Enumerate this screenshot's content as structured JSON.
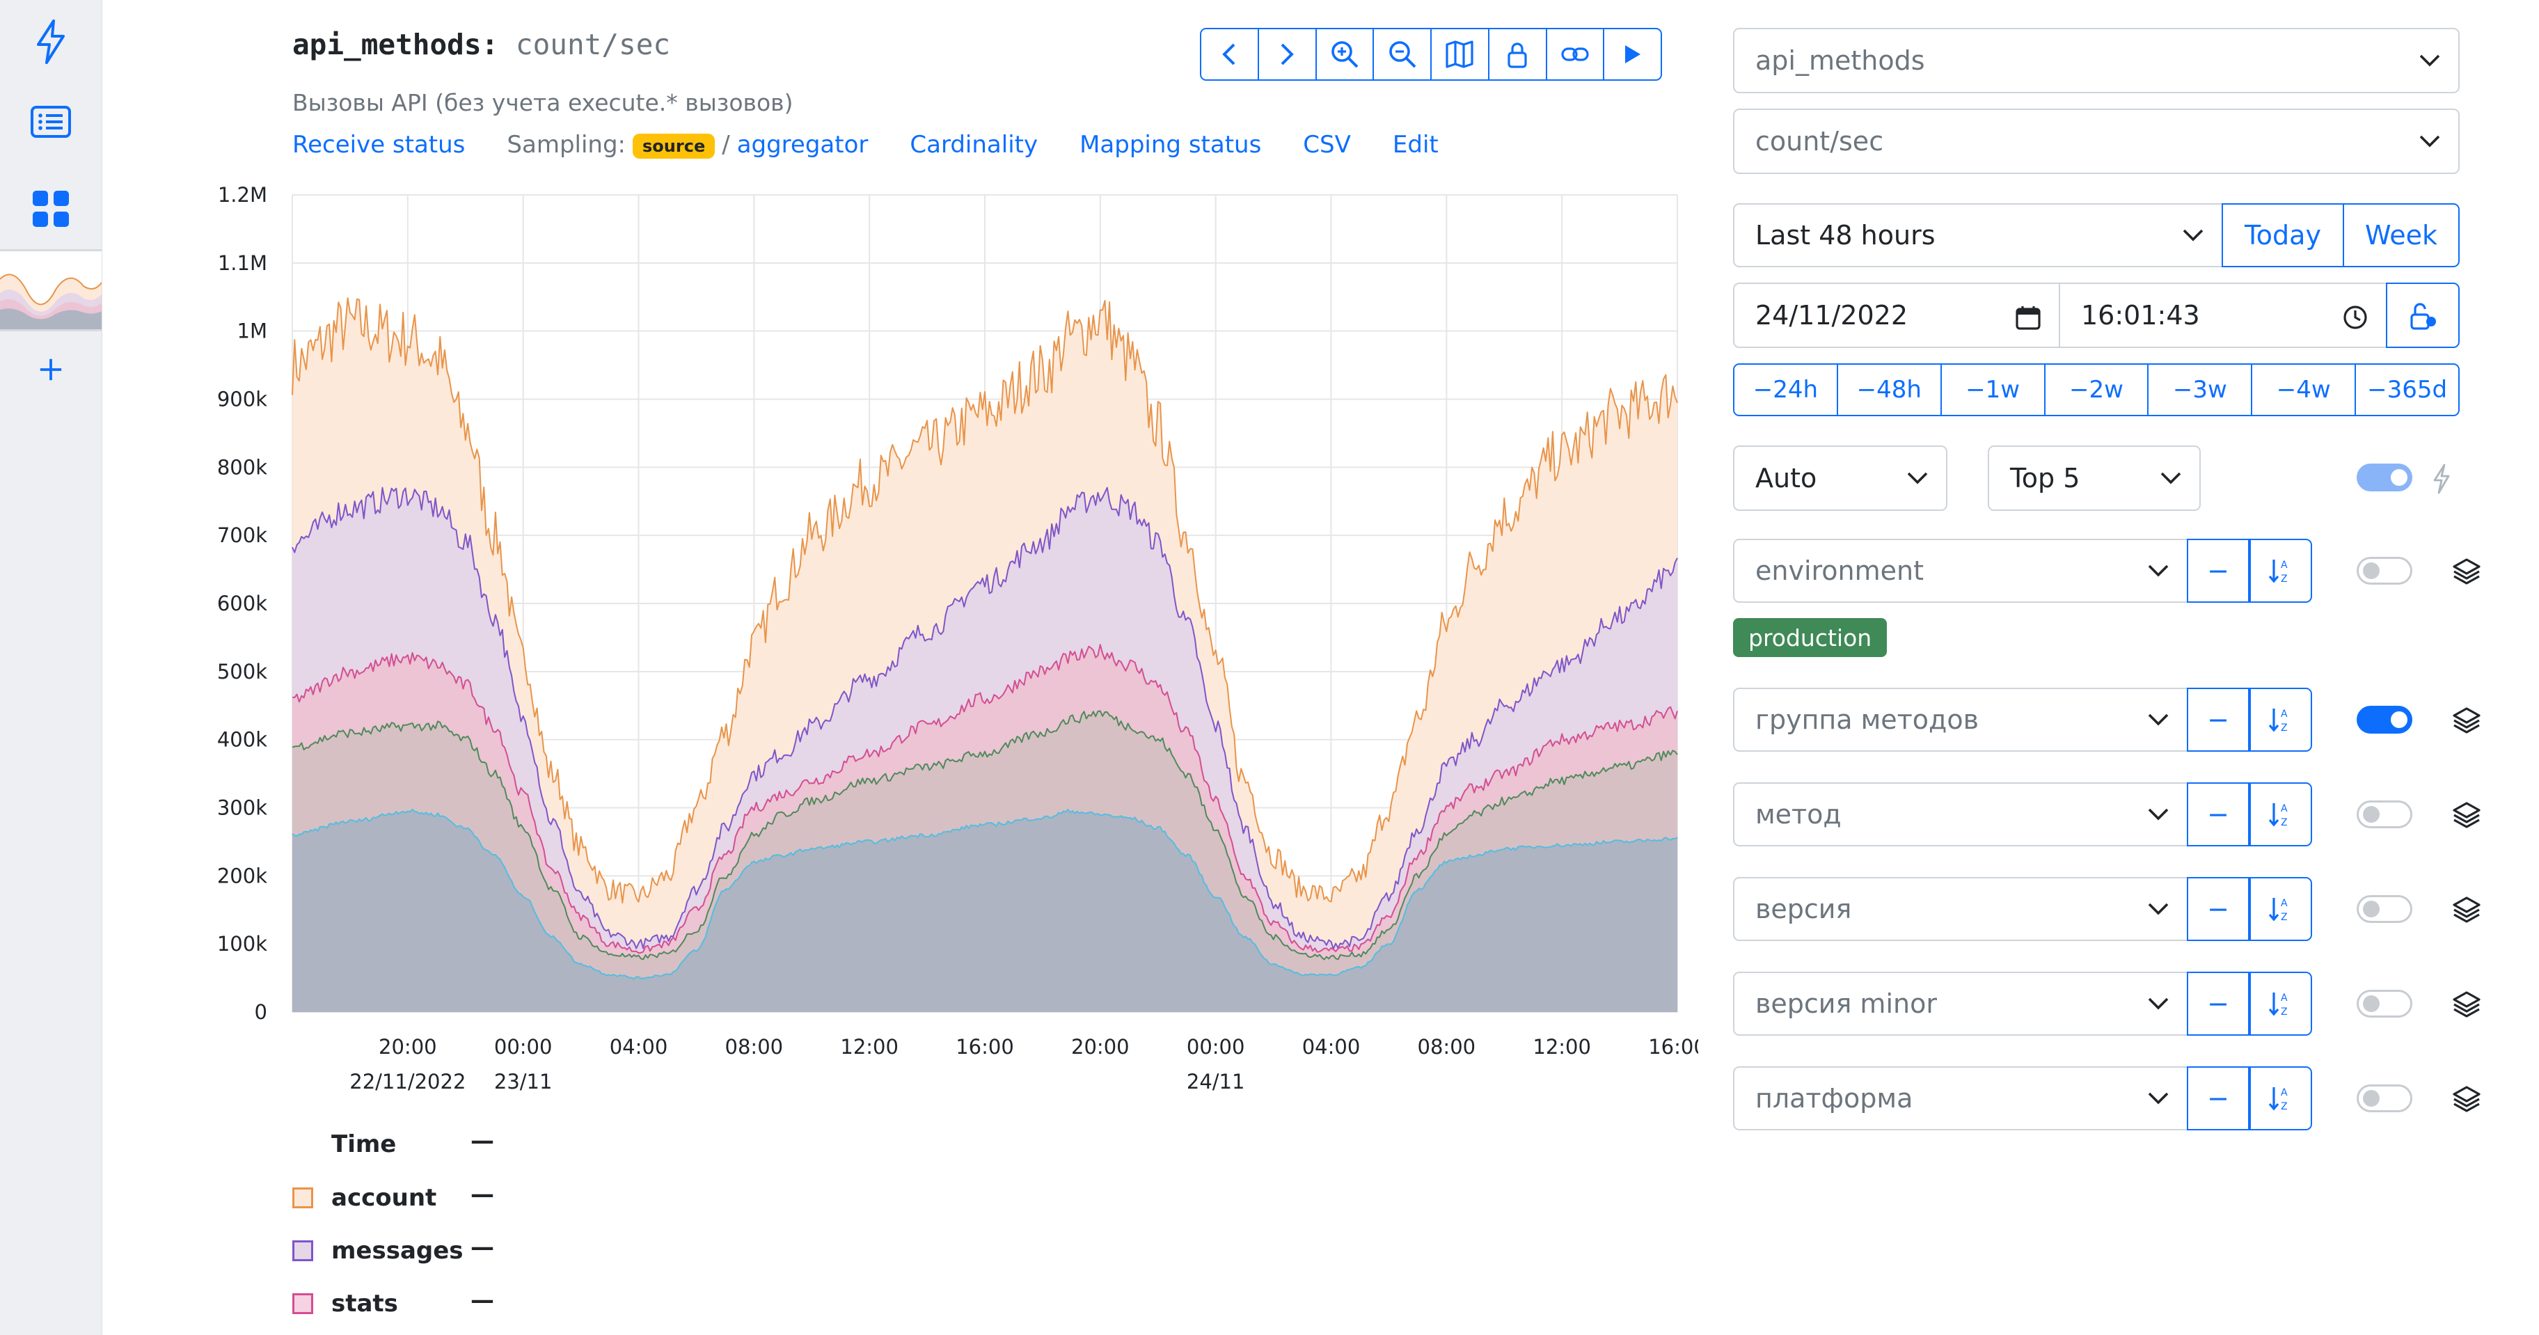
{
  "metric": {
    "name": "api_methods:",
    "what": "count/sec",
    "description": "Вызовы API (без учета execute.* вызовов)"
  },
  "links": {
    "receive_status": "Receive status",
    "sampling_label": "Sampling:",
    "source_badge": "source",
    "separator": "/",
    "aggregator": "aggregator",
    "cardinality": "Cardinality",
    "mapping_status": "Mapping status",
    "csv": "CSV",
    "edit": "Edit"
  },
  "toolbar": [
    "chevron-left-icon",
    "chevron-right-icon",
    "zoom-in-icon",
    "zoom-out-icon",
    "map-icon",
    "lock-icon",
    "link-icon",
    "play-icon"
  ],
  "chart_data": {
    "type": "area",
    "stacked": false,
    "ylim": [
      0,
      1200000
    ],
    "y_ticks": [
      {
        "v": 0,
        "label": "0"
      },
      {
        "v": 100000,
        "label": "100k"
      },
      {
        "v": 200000,
        "label": "200k"
      },
      {
        "v": 300000,
        "label": "300k"
      },
      {
        "v": 400000,
        "label": "400k"
      },
      {
        "v": 500000,
        "label": "500k"
      },
      {
        "v": 600000,
        "label": "600k"
      },
      {
        "v": 700000,
        "label": "700k"
      },
      {
        "v": 800000,
        "label": "800k"
      },
      {
        "v": 900000,
        "label": "900k"
      },
      {
        "v": 1000000,
        "label": "1M"
      },
      {
        "v": 1100000,
        "label": "1.1M"
      },
      {
        "v": 1200000,
        "label": "1.2M"
      }
    ],
    "xlim": [
      "2022-11-22 16:00",
      "2022-11-24 16:00"
    ],
    "x_ticks": [
      {
        "h": 4,
        "label": "20:00",
        "sub": "22/11/2022"
      },
      {
        "h": 8,
        "label": "00:00",
        "sub": "23/11"
      },
      {
        "h": 12,
        "label": "04:00",
        "sub": ""
      },
      {
        "h": 16,
        "label": "08:00",
        "sub": ""
      },
      {
        "h": 20,
        "label": "12:00",
        "sub": ""
      },
      {
        "h": 24,
        "label": "16:00",
        "sub": ""
      },
      {
        "h": 28,
        "label": "20:00",
        "sub": ""
      },
      {
        "h": 32,
        "label": "00:00",
        "sub": "24/11"
      },
      {
        "h": 36,
        "label": "04:00",
        "sub": ""
      },
      {
        "h": 40,
        "label": "08:00",
        "sub": ""
      },
      {
        "h": 44,
        "label": "12:00",
        "sub": ""
      },
      {
        "h": 48,
        "label": "16:00",
        "sub": ""
      }
    ],
    "x_hours": [
      0,
      2,
      4,
      5,
      6,
      7,
      8,
      9,
      10,
      11,
      12,
      13,
      14,
      15,
      16,
      17,
      18,
      20,
      22,
      24,
      26,
      27,
      28,
      29,
      30,
      31,
      32,
      33,
      34,
      35,
      36,
      37,
      38,
      39,
      40,
      41,
      42,
      44,
      46,
      48
    ],
    "series": [
      {
        "name": "account",
        "line": "#e8944a",
        "fill": "#fde9d9",
        "values": [
          950000,
          1010000,
          990000,
          960000,
          860000,
          700000,
          520000,
          350000,
          240000,
          180000,
          170000,
          200000,
          300000,
          410000,
          540000,
          630000,
          700000,
          780000,
          830000,
          880000,
          940000,
          990000,
          1020000,
          960000,
          860000,
          700000,
          520000,
          340000,
          230000,
          180000,
          170000,
          200000,
          300000,
          430000,
          570000,
          660000,
          730000,
          820000,
          880000,
          910000
        ]
      },
      {
        "name": "messages",
        "line": "#7f55c9",
        "fill": "#e5d6e8",
        "values": [
          690000,
          740000,
          760000,
          740000,
          690000,
          580000,
          430000,
          280000,
          170000,
          115000,
          100000,
          110000,
          180000,
          270000,
          350000,
          380000,
          420000,
          490000,
          560000,
          630000,
          690000,
          740000,
          760000,
          740000,
          690000,
          570000,
          420000,
          270000,
          160000,
          110000,
          100000,
          105000,
          170000,
          270000,
          360000,
          400000,
          450000,
          510000,
          580000,
          650000
        ]
      },
      {
        "name": "stats",
        "line": "#d44e92",
        "fill": "#ecc4d3",
        "values": [
          460000,
          500000,
          520000,
          510000,
          480000,
          420000,
          320000,
          210000,
          140000,
          100000,
          90000,
          100000,
          150000,
          230000,
          300000,
          320000,
          340000,
          380000,
          420000,
          460000,
          500000,
          520000,
          530000,
          510000,
          480000,
          410000,
          310000,
          200000,
          130000,
          95000,
          90000,
          95000,
          140000,
          230000,
          300000,
          330000,
          350000,
          400000,
          420000,
          440000
        ]
      },
      {
        "name": "",
        "line": "#4f8a5b",
        "fill": "#d7c0c4",
        "values": [
          390000,
          410000,
          420000,
          420000,
          400000,
          350000,
          270000,
          180000,
          110000,
          85000,
          80000,
          85000,
          120000,
          200000,
          260000,
          290000,
          310000,
          340000,
          360000,
          380000,
          410000,
          430000,
          440000,
          420000,
          400000,
          350000,
          270000,
          170000,
          110000,
          85000,
          80000,
          85000,
          120000,
          200000,
          260000,
          290000,
          310000,
          340000,
          360000,
          380000
        ]
      },
      {
        "name": "",
        "line": "#55bde0",
        "fill": "#aeb4c2",
        "values": [
          260000,
          280000,
          295000,
          290000,
          270000,
          230000,
          170000,
          110000,
          70000,
          55000,
          50000,
          55000,
          90000,
          180000,
          220000,
          230000,
          240000,
          250000,
          260000,
          275000,
          285000,
          295000,
          290000,
          285000,
          270000,
          230000,
          170000,
          110000,
          70000,
          55000,
          55000,
          65000,
          100000,
          180000,
          220000,
          230000,
          240000,
          245000,
          250000,
          255000
        ]
      }
    ]
  },
  "legend": {
    "header": "Time",
    "dash": "—",
    "items": [
      {
        "name": "account",
        "border": "#e8944a",
        "fill": "#fde9d9"
      },
      {
        "name": "messages",
        "border": "#7f55c9",
        "fill": "#e5d6e8"
      },
      {
        "name": "stats",
        "border": "#d44e92",
        "fill": "#f6d2e3"
      }
    ]
  },
  "controls": {
    "metric_select": "api_methods",
    "what_select": "count/sec",
    "period_select": "Last 48 hours",
    "today": "Today",
    "week": "Week",
    "date": "24/11/2022",
    "time": "16:01:43",
    "shifts": [
      "−24h",
      "−48h",
      "−1w",
      "−2w",
      "−3w",
      "−4w",
      "−365d"
    ],
    "resolution": "Auto",
    "top": "Top 5",
    "minus": "−",
    "tags": [
      {
        "label": "environment",
        "toggle": "off"
      },
      {
        "label": "группа методов",
        "toggle": "on"
      },
      {
        "label": "метод",
        "toggle": "off"
      },
      {
        "label": "версия",
        "toggle": "off"
      },
      {
        "label": "версия minor",
        "toggle": "off"
      },
      {
        "label": "платформа",
        "toggle": "off"
      }
    ],
    "environment_value": "production"
  }
}
